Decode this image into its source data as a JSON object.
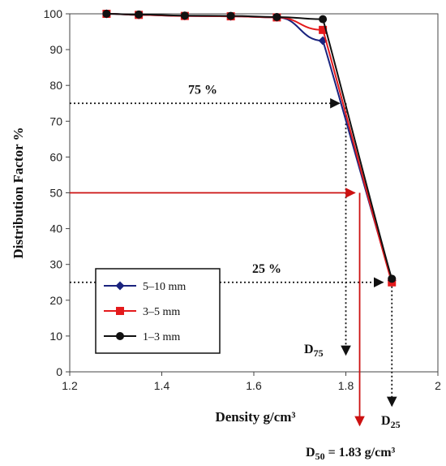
{
  "chart_data": {
    "type": "line",
    "xlabel": "Density g/cm³",
    "ylabel": "Distribution Factor %",
    "xlim": [
      1.2,
      2
    ],
    "ylim": [
      0,
      100
    ],
    "xticks": [
      "1.2",
      "1.4",
      "1.6",
      "1.8",
      "2"
    ],
    "yticks": [
      "0",
      "10",
      "20",
      "30",
      "40",
      "50",
      "60",
      "70",
      "80",
      "90",
      "100"
    ],
    "grid": false,
    "legend_position": "bottom-left",
    "series": [
      {
        "name": "5–10 mm",
        "color": "#1a237e",
        "marker": "diamond",
        "x": [
          1.28,
          1.35,
          1.45,
          1.55,
          1.65,
          1.75,
          1.9
        ],
        "y": [
          100,
          99.7,
          99.4,
          99.3,
          99,
          92.5,
          25.5
        ]
      },
      {
        "name": "3–5 mm",
        "color": "#e41a1c",
        "marker": "square",
        "x": [
          1.28,
          1.35,
          1.45,
          1.55,
          1.65,
          1.75,
          1.9
        ],
        "y": [
          100,
          99.7,
          99.4,
          99.3,
          99,
          95.5,
          25
        ]
      },
      {
        "name": "1–3 mm",
        "color": "#111111",
        "marker": "circle",
        "x": [
          1.28,
          1.35,
          1.45,
          1.55,
          1.65,
          1.75,
          1.9
        ],
        "y": [
          100,
          99.8,
          99.5,
          99.4,
          99.1,
          98.5,
          26
        ]
      }
    ],
    "annotations": {
      "p75": {
        "label": "75 %",
        "x": 1.8,
        "y": 75
      },
      "p25": {
        "label": "25 %",
        "x": 1.9,
        "y": 25
      },
      "p50": {
        "x": 1.83,
        "y": 50
      },
      "d75": {
        "prefix": "D",
        "sub": "75"
      },
      "d25": {
        "prefix": "D",
        "sub": "25"
      },
      "d50": {
        "prefix": "D",
        "sub": "50",
        "suffix": " = 1.83 g/cm³"
      }
    }
  }
}
